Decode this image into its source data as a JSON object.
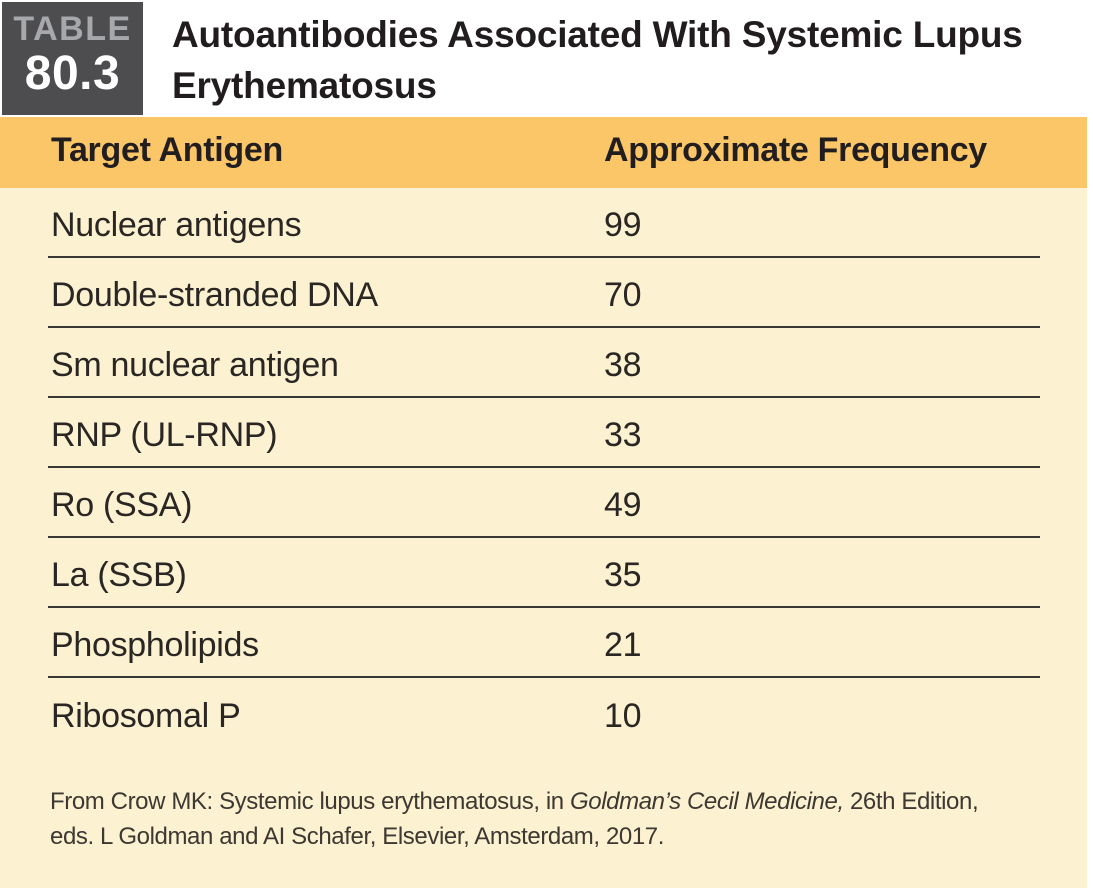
{
  "badge": {
    "label": "TABLE",
    "number": "80.3"
  },
  "title": "Autoantibodies Associated With Systemic Lupus Erythematosus",
  "columns": {
    "antigen": "Target Antigen",
    "frequency": "Approximate Frequency"
  },
  "rows": [
    {
      "antigen": "Nuclear antigens",
      "frequency": "99"
    },
    {
      "antigen": "Double-stranded DNA",
      "frequency": "70"
    },
    {
      "antigen": "Sm nuclear antigen",
      "frequency": "38"
    },
    {
      "antigen": "RNP (UL-RNP)",
      "frequency": "33"
    },
    {
      "antigen": "Ro (SSA)",
      "frequency": "49"
    },
    {
      "antigen": "La (SSB)",
      "frequency": "35"
    },
    {
      "antigen": "Phospholipids",
      "frequency": "21"
    },
    {
      "antigen": "Ribosomal P",
      "frequency": "10"
    }
  ],
  "footer": {
    "line1_prefix": "From Crow MK: Systemic lupus erythematosus, in ",
    "line1_italic": "Goldman’s Cecil Medicine,",
    "line1_suffix": " 26th Edition,",
    "line2": "eds. L Goldman and AI Schafer, Elsevier, Amsterdam, 2017."
  },
  "colors": {
    "badge_bg": "#4D4D4F",
    "badge_label": "#A6A8AB",
    "header_band": "#FAC667",
    "body_bg": "#FCF1D0",
    "rule": "#3A3835",
    "title_text": "#211D1E"
  },
  "chart_data": {
    "type": "table",
    "title": "Autoantibodies Associated With Systemic Lupus Erythematosus",
    "columns": [
      "Target Antigen",
      "Approximate Frequency"
    ],
    "categories": [
      "Nuclear antigens",
      "Double-stranded DNA",
      "Sm nuclear antigen",
      "RNP (UL-RNP)",
      "Ro (SSA)",
      "La (SSB)",
      "Phospholipids",
      "Ribosomal P"
    ],
    "values": [
      99,
      70,
      38,
      33,
      49,
      35,
      21,
      10
    ]
  }
}
